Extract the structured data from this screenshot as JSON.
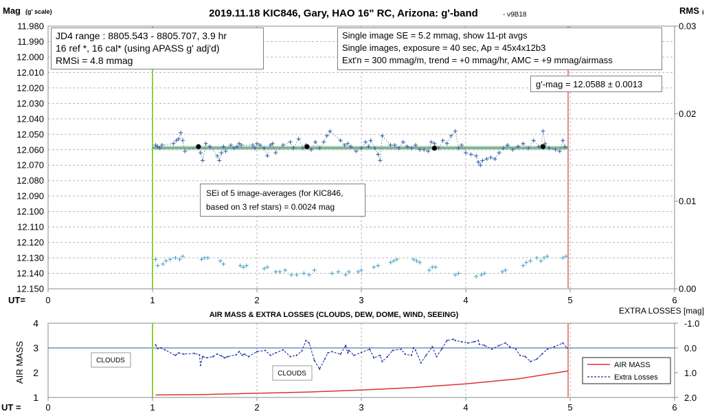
{
  "top": {
    "title": "2019.11.18 KIC846, Gary, HAO 16\" RC, Arizona: g'-band",
    "version": "- v9B18",
    "ylabel": "Mag",
    "ylabel_note": "(g' scale)",
    "y2label": "RMS",
    "y2label_sub": "i",
    "ut_label": "UT=",
    "y_ticks": [
      "11.980",
      "11.990",
      "12.000",
      "12.010",
      "12.020",
      "12.030",
      "12.040",
      "12.050",
      "12.060",
      "12.070",
      "12.080",
      "12.090",
      "12.100",
      "12.110",
      "12.120",
      "12.130",
      "12.140",
      "12.150"
    ],
    "y2_ticks": [
      "0.03",
      "0.02",
      "0.01",
      "0.00"
    ],
    "x_ticks": [
      "0",
      "1",
      "2",
      "3",
      "4",
      "5",
      "6"
    ]
  },
  "boxes": {
    "jd_lines": [
      "JD4 range : 8805.543 - 8805.707,  3.9  hr",
      "16 ref *, 16 cal* (using APASS g' adj'd)",
      "RMSi = 4.8 mmag"
    ],
    "info_lines": [
      "Single image SE = 5.2 mmag, show  11-pt avgs",
      "Single images, exposure = 40 sec, Ap = 45x4x12b3",
      "Ext'n = 300 mmag/m, trend =  +0 mmag/hr, AMC = +9 mmag/airmass"
    ],
    "gmag": "g'-mag = 12.0588 ± 0.0013",
    "sei_lines": [
      "SEi of 5 image-averages (for KIC846,",
      "based on 3 ref stars) = 0.0024 mag"
    ]
  },
  "bottom": {
    "title": "AIR MASS & EXTRA LOSSES (CLOUDS, DEW, DOME, WIND, SEEING)",
    "ylabel": "AIR MASS",
    "y2label": "EXTRA LOSSES [mag]",
    "ut_label": "UT =",
    "y_ticks": [
      "4",
      "3",
      "2",
      "1"
    ],
    "y2_ticks": [
      "-1.0",
      "0.0",
      "1.0",
      "2.0"
    ],
    "x_ticks": [
      "0",
      "1",
      "2",
      "3",
      "4",
      "5",
      "6"
    ],
    "clouds_label_1": "CLOUDS",
    "clouds_label_2": "CLOUDS",
    "legend": {
      "air_mass": "AIR MASS",
      "extra_losses": "Extra Losses"
    }
  },
  "colors": {
    "target": "#2e5f9e",
    "check": "#3e9fc0",
    "mean_line": "#7ab58a",
    "start_line": "#8fce3a",
    "end_line": "#e38a8a",
    "air_mass": "#e03030",
    "extra_losses": "#1a2fa8",
    "grid": "#b4b4b4",
    "zero_line": "#1f5f8f"
  },
  "chart_data": [
    {
      "type": "scatter",
      "title": "2019.11.18 KIC846, Gary, HAO 16\" RC, Arizona: g'-band",
      "xlabel": "UT=",
      "ylabel": "Mag (g' scale)",
      "xlim": [
        0,
        6
      ],
      "ylim": [
        12.15,
        11.98
      ],
      "y2lim": [
        0.0,
        0.03
      ],
      "grid": true,
      "start_ut": 1.0,
      "end_ut": 4.98,
      "mean_mag": 12.0588,
      "series": [
        {
          "marker": "plus",
          "x": [
            1.03,
            1.05,
            1.07,
            1.09,
            1.2,
            1.23,
            1.25,
            1.27,
            1.29,
            1.31,
            1.44,
            1.46,
            1.48,
            1.51,
            1.55,
            1.62,
            1.64,
            1.66,
            1.68,
            1.7,
            1.75,
            1.78,
            1.81,
            1.83,
            1.85,
            1.96,
            1.98,
            2.0,
            2.03,
            2.07,
            2.1,
            2.13,
            2.15,
            2.18,
            2.25,
            2.32,
            2.35,
            2.4,
            2.44,
            2.47,
            2.52,
            2.56,
            2.6,
            2.64,
            2.67,
            2.7,
            2.8,
            2.84,
            2.87,
            2.9,
            2.95,
            3.0,
            3.04,
            3.07,
            3.09,
            3.13,
            3.16,
            3.18,
            3.2,
            3.28,
            3.32,
            3.36,
            3.4,
            3.44,
            3.48,
            3.52,
            3.56,
            3.6,
            3.64,
            3.67,
            3.7,
            3.74,
            3.78,
            3.82,
            3.86,
            3.9,
            3.93,
            3.96,
            4.0,
            4.05,
            4.1,
            4.12,
            4.14,
            4.16,
            4.2,
            4.24,
            4.28,
            4.32,
            4.36,
            4.4,
            4.45,
            4.5,
            4.55,
            4.6,
            4.65,
            4.7,
            4.72,
            4.74,
            4.76,
            4.8,
            4.86,
            4.9,
            4.93,
            4.95
          ],
          "y": [
            12.057,
            12.058,
            12.059,
            12.057,
            12.056,
            12.054,
            12.053,
            12.049,
            12.054,
            12.061,
            12.058,
            12.062,
            12.067,
            12.056,
            12.058,
            12.064,
            12.067,
            12.062,
            12.058,
            12.061,
            12.057,
            12.059,
            12.058,
            12.056,
            12.057,
            12.057,
            12.059,
            12.056,
            12.057,
            12.059,
            12.064,
            12.057,
            12.056,
            12.062,
            12.057,
            12.055,
            12.059,
            12.053,
            12.059,
            12.057,
            12.06,
            12.055,
            12.059,
            12.055,
            12.051,
            12.048,
            12.054,
            12.057,
            12.056,
            12.058,
            12.061,
            12.059,
            12.055,
            12.058,
            12.054,
            12.059,
            12.063,
            12.067,
            12.051,
            12.057,
            12.057,
            12.059,
            12.055,
            12.058,
            12.059,
            12.057,
            12.06,
            12.06,
            12.061,
            12.055,
            12.056,
            12.059,
            12.054,
            12.056,
            12.051,
            12.048,
            12.059,
            12.057,
            12.062,
            12.063,
            12.064,
            12.068,
            12.07,
            12.067,
            12.066,
            12.065,
            12.066,
            12.062,
            12.059,
            12.057,
            12.06,
            12.058,
            12.056,
            12.059,
            12.054,
            12.058,
            12.058,
            12.048,
            12.056,
            12.059,
            12.06,
            12.061,
            12.054,
            12.058
          ]
        },
        {
          "marker": "dot",
          "x": [
            1.44,
            2.48,
            3.7,
            4.74
          ],
          "y": [
            12.058,
            12.058,
            12.059,
            12.058
          ]
        },
        {
          "marker": "plus",
          "x": [
            1.03,
            1.05,
            1.1,
            1.13,
            1.17,
            1.22,
            1.26,
            1.29,
            1.47,
            1.5,
            1.53,
            1.65,
            1.68,
            1.84,
            1.87,
            1.9,
            2.07,
            2.1,
            2.18,
            2.22,
            2.27,
            2.33,
            2.38,
            2.45,
            2.5,
            2.55,
            2.72,
            2.78,
            2.85,
            2.88,
            2.97,
            3.0,
            3.12,
            3.16,
            3.28,
            3.31,
            3.34,
            3.5,
            3.53,
            3.56,
            3.65,
            3.68,
            3.71,
            3.9,
            3.93,
            4.1,
            4.15,
            4.18,
            4.35,
            4.38,
            4.55,
            4.58,
            4.62,
            4.68,
            4.72,
            4.75,
            4.78,
            4.93,
            4.96
          ],
          "y": [
            12.131,
            12.135,
            12.134,
            12.132,
            12.131,
            12.13,
            12.131,
            12.129,
            12.131,
            12.13,
            12.13,
            12.132,
            12.134,
            12.135,
            12.136,
            12.135,
            12.137,
            12.136,
            12.139,
            12.139,
            12.138,
            12.141,
            12.141,
            12.14,
            12.141,
            12.138,
            12.14,
            12.139,
            12.141,
            12.139,
            12.139,
            12.138,
            12.136,
            12.135,
            12.133,
            12.132,
            12.131,
            12.131,
            12.132,
            12.133,
            12.138,
            12.136,
            12.136,
            12.141,
            12.14,
            12.142,
            12.141,
            12.14,
            12.139,
            12.138,
            12.135,
            12.133,
            12.132,
            12.13,
            12.132,
            12.13,
            12.129,
            12.13,
            12.129
          ]
        }
      ]
    },
    {
      "type": "line",
      "title": "AIR MASS & EXTRA LOSSES (CLOUDS, DEW, DOME, WIND, SEEING)",
      "xlabel": "UT =",
      "ylabel": "AIR MASS",
      "y2label": "EXTRA LOSSES [mag]",
      "xlim": [
        0,
        6
      ],
      "ylim": [
        1,
        4
      ],
      "y2lim": [
        2.0,
        -1.0
      ],
      "legend": "right",
      "series": [
        {
          "name": "AIR MASS",
          "axis": "left",
          "x": [
            1.03,
            1.5,
            2.0,
            2.5,
            3.0,
            3.5,
            4.0,
            4.5,
            4.8,
            4.98
          ],
          "y": [
            1.1,
            1.12,
            1.17,
            1.22,
            1.3,
            1.4,
            1.55,
            1.75,
            1.95,
            2.07
          ]
        },
        {
          "name": "Extra Losses",
          "axis": "right",
          "x": [
            1.03,
            1.05,
            1.08,
            1.12,
            1.22,
            1.25,
            1.3,
            1.4,
            1.45,
            1.46,
            1.48,
            1.52,
            1.58,
            1.62,
            1.66,
            1.69,
            1.72,
            1.8,
            1.83,
            1.86,
            1.88,
            1.92,
            2.0,
            2.08,
            2.13,
            2.18,
            2.25,
            2.32,
            2.38,
            2.43,
            2.47,
            2.5,
            2.55,
            2.6,
            2.65,
            2.68,
            2.72,
            2.8,
            2.85,
            2.87,
            2.88,
            2.93,
            3.0,
            3.08,
            3.12,
            3.18,
            3.2,
            3.25,
            3.3,
            3.38,
            3.42,
            3.48,
            3.5,
            3.52,
            3.57,
            3.62,
            3.68,
            3.72,
            3.77,
            3.82,
            3.88,
            3.9,
            3.96,
            4.02,
            4.08,
            4.12,
            4.13,
            4.18,
            4.25,
            4.32,
            4.38,
            4.42,
            4.48,
            4.52,
            4.57,
            4.62,
            4.68,
            4.73,
            4.78,
            4.85,
            4.93,
            4.97
          ],
          "y": [
            -0.12,
            0.02,
            0.0,
            0.08,
            0.3,
            0.2,
            0.25,
            0.22,
            0.28,
            0.7,
            0.35,
            0.4,
            0.35,
            0.25,
            0.32,
            0.4,
            0.35,
            0.28,
            0.15,
            0.3,
            0.25,
            0.35,
            0.15,
            0.1,
            0.3,
            0.2,
            0.08,
            0.35,
            0.3,
            0.12,
            -0.3,
            -0.2,
            0.5,
            0.85,
            0.45,
            0.2,
            0.15,
            0.25,
            -0.1,
            0.2,
            0.1,
            0.3,
            0.18,
            0.05,
            0.4,
            0.3,
            0.55,
            0.35,
            0.1,
            0.05,
            0.25,
            0.3,
            0.0,
            0.1,
            0.6,
            0.3,
            -0.05,
            0.35,
            0.05,
            -0.3,
            -0.35,
            -0.3,
            -0.25,
            -0.2,
            -0.25,
            -0.3,
            -0.15,
            -0.1,
            0.05,
            -0.1,
            -0.2,
            -0.05,
            0.05,
            0.3,
            0.35,
            0.55,
            0.45,
            0.25,
            0.05,
            -0.05,
            -0.2,
            0.0
          ]
        }
      ]
    }
  ]
}
